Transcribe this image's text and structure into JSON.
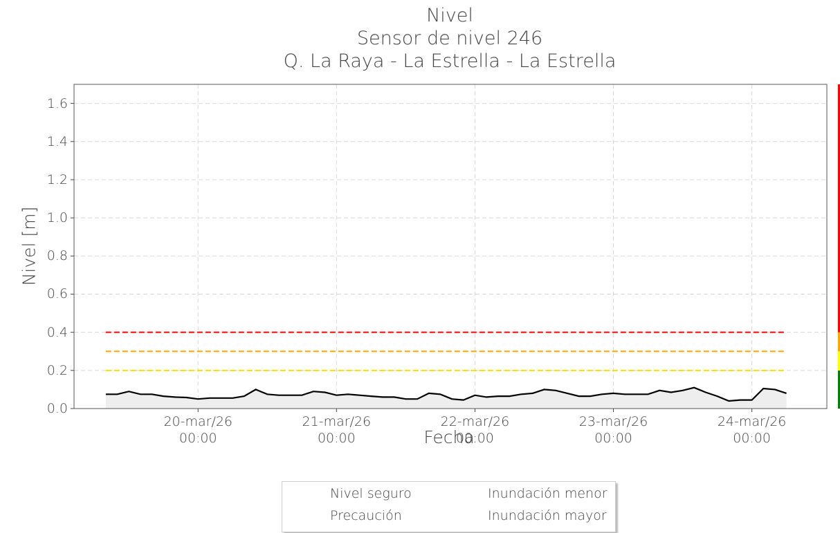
{
  "chart_data": {
    "type": "line",
    "title": [
      "Nivel",
      "Sensor de nivel 246",
      "Q. La Raya - La Estrella - La Estrella"
    ],
    "x_label": "Fecha",
    "y_label": "Nivel [m]",
    "color": "#000000",
    "area_color": "#eeeeee",
    "grid": true,
    "x": [
      "2026-03-19T08:00",
      "2026-03-19T10:00",
      "2026-03-19T12:00",
      "2026-03-19T14:00",
      "2026-03-19T16:00",
      "2026-03-19T18:00",
      "2026-03-19T20:00",
      "2026-03-19T22:00",
      "2026-03-20T00:00",
      "2026-03-20T02:00",
      "2026-03-20T04:00",
      "2026-03-20T06:00",
      "2026-03-20T08:00",
      "2026-03-20T10:00",
      "2026-03-20T12:00",
      "2026-03-20T14:00",
      "2026-03-20T16:00",
      "2026-03-20T18:00",
      "2026-03-20T20:00",
      "2026-03-20T22:00",
      "2026-03-21T00:00",
      "2026-03-21T02:00",
      "2026-03-21T04:00",
      "2026-03-21T06:00",
      "2026-03-21T08:00",
      "2026-03-21T10:00",
      "2026-03-21T12:00",
      "2026-03-21T14:00",
      "2026-03-21T16:00",
      "2026-03-21T18:00",
      "2026-03-21T20:00",
      "2026-03-21T22:00",
      "2026-03-22T00:00",
      "2026-03-22T02:00",
      "2026-03-22T04:00",
      "2026-03-22T06:00",
      "2026-03-22T08:00",
      "2026-03-22T10:00",
      "2026-03-22T12:00",
      "2026-03-22T14:00",
      "2026-03-22T16:00",
      "2026-03-22T18:00",
      "2026-03-22T20:00",
      "2026-03-22T22:00",
      "2026-03-23T00:00",
      "2026-03-23T02:00",
      "2026-03-23T04:00",
      "2026-03-23T06:00",
      "2026-03-23T08:00",
      "2026-03-23T10:00",
      "2026-03-23T12:00",
      "2026-03-23T14:00",
      "2026-03-23T16:00",
      "2026-03-23T18:00",
      "2026-03-23T20:00",
      "2026-03-23T22:00",
      "2026-03-24T00:00",
      "2026-03-24T02:00",
      "2026-03-24T04:00",
      "2026-03-24T06:00"
    ],
    "values": [
      0.075,
      0.075,
      0.09,
      0.075,
      0.075,
      0.065,
      0.06,
      0.058,
      0.05,
      0.055,
      0.055,
      0.055,
      0.065,
      0.1,
      0.075,
      0.07,
      0.07,
      0.07,
      0.09,
      0.085,
      0.07,
      0.075,
      0.07,
      0.065,
      0.06,
      0.06,
      0.05,
      0.05,
      0.08,
      0.075,
      0.05,
      0.045,
      0.07,
      0.06,
      0.065,
      0.065,
      0.075,
      0.08,
      0.1,
      0.095,
      0.08,
      0.065,
      0.065,
      0.075,
      0.08,
      0.075,
      0.075,
      0.075,
      0.095,
      0.085,
      0.095,
      0.11,
      0.085,
      0.065,
      0.04,
      0.045,
      0.045,
      0.105,
      0.1,
      0.08
    ],
    "xlim": [
      "2026-03-19T02:30",
      "2026-03-24T13:00"
    ],
    "xticks": [
      {
        "value": "2026-03-20T00:00",
        "label": "20-mar/26\n00:00"
      },
      {
        "value": "2026-03-21T00:00",
        "label": "21-mar/26\n00:00"
      },
      {
        "value": "2026-03-22T00:00",
        "label": "22-mar/26\n00:00"
      },
      {
        "value": "2026-03-23T00:00",
        "label": "23-mar/26\n00:00"
      },
      {
        "value": "2026-03-24T00:00",
        "label": "24-mar/26\n00:00"
      }
    ],
    "ylim": [
      0,
      1.7
    ],
    "yticks": [
      {
        "value": 0,
        "label": "0.0"
      },
      0.2,
      0.4,
      0.6,
      0.8,
      {
        "value": 1,
        "label": "1.0"
      },
      1.2,
      1.4,
      1.6
    ],
    "levels": [
      {
        "name": "Nivel seguro",
        "color": "#008000",
        "from": 0,
        "to": 0.2
      },
      {
        "name": "Precaución",
        "color": "#ffff00",
        "from": 0.2,
        "to": 0.3
      },
      {
        "name": "Inundación menor",
        "color": "#ffa500",
        "from": 0.3,
        "to": 0.4
      },
      {
        "name": "Inundación mayor",
        "color": "#ff0000",
        "from": 0.4,
        "to": 1.7
      }
    ]
  }
}
